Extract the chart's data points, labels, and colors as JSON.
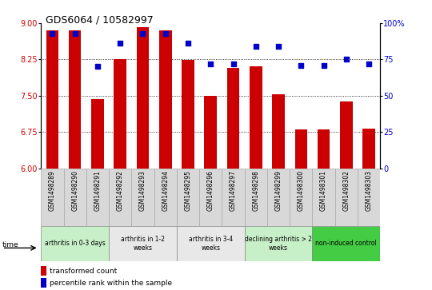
{
  "title": "GDS6064 / 10582997",
  "samples": [
    "GSM1498289",
    "GSM1498290",
    "GSM1498291",
    "GSM1498292",
    "GSM1498293",
    "GSM1498294",
    "GSM1498295",
    "GSM1498296",
    "GSM1498297",
    "GSM1498298",
    "GSM1498299",
    "GSM1498300",
    "GSM1498301",
    "GSM1498302",
    "GSM1498303"
  ],
  "bar_values": [
    8.85,
    8.86,
    7.43,
    8.25,
    8.91,
    8.85,
    8.24,
    7.49,
    8.07,
    8.1,
    7.53,
    6.8,
    6.8,
    7.38,
    6.82
  ],
  "percentile_values": [
    93,
    93,
    70,
    86,
    93,
    93,
    86,
    72,
    72,
    84,
    84,
    71,
    71,
    75,
    72
  ],
  "ylim_left": [
    6,
    9
  ],
  "ylim_right": [
    0,
    100
  ],
  "yticks_left": [
    6,
    6.75,
    7.5,
    8.25,
    9
  ],
  "yticks_right": [
    0,
    25,
    50,
    75,
    100
  ],
  "bar_color": "#cc0000",
  "scatter_color": "#0000cc",
  "groups": [
    {
      "label": "arthritis in 0-3 days",
      "start": 0,
      "end": 3,
      "color": "#c8f0c8"
    },
    {
      "label": "arthritis in 1-2\nweeks",
      "start": 3,
      "end": 6,
      "color": "#e8e8e8"
    },
    {
      "label": "arthritis in 3-4\nweeks",
      "start": 6,
      "end": 9,
      "color": "#e8e8e8"
    },
    {
      "label": "declining arthritis > 2\nweeks",
      "start": 9,
      "end": 12,
      "color": "#c8f0c8"
    },
    {
      "label": "non-induced control",
      "start": 12,
      "end": 15,
      "color": "#44cc44"
    }
  ],
  "legend_bar_label": "transformed count",
  "legend_scatter_label": "percentile rank within the sample",
  "time_label": "time",
  "background_color": "#ffffff",
  "title_fontsize": 9,
  "tick_fontsize": 7,
  "label_fontsize": 7
}
